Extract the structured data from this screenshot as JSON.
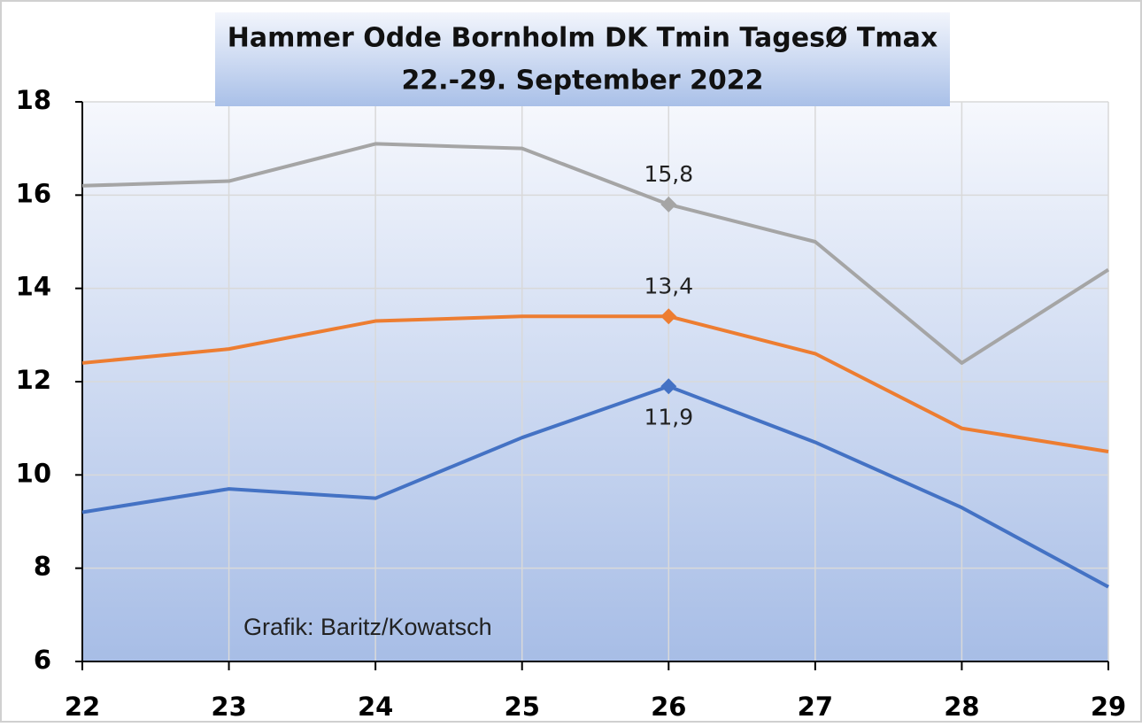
{
  "chart_data": {
    "type": "line",
    "title": "Hammer Odde Bornholm  DK Tmin TagesØ Tmax",
    "subtitle": "22.-29. September 2022",
    "annotation": "Grafik: Baritz/Kowatsch",
    "categories": [
      "22",
      "23",
      "24",
      "25",
      "26",
      "27",
      "28",
      "29"
    ],
    "series": [
      {
        "color": "#4472c4",
        "values": [
          9.2,
          9.7,
          9.5,
          10.8,
          11.9,
          10.7,
          9.3,
          7.6
        ],
        "value_labels": [
          null,
          null,
          null,
          null,
          "11,9",
          null,
          null,
          null
        ]
      },
      {
        "color": "#ed7d31",
        "values": [
          12.4,
          12.7,
          13.3,
          13.4,
          13.4,
          12.6,
          11.0,
          10.5
        ],
        "value_labels": [
          null,
          null,
          null,
          null,
          "13,4",
          null,
          null,
          null
        ]
      },
      {
        "color": "#a5a5a5",
        "values": [
          16.2,
          16.3,
          17.1,
          17.0,
          15.8,
          15.0,
          12.4,
          14.4
        ],
        "value_labels": [
          null,
          null,
          null,
          null,
          "15,8",
          null,
          null,
          null
        ]
      }
    ],
    "ylim": [
      6,
      18
    ],
    "yticks": [
      6,
      8,
      10,
      12,
      14,
      16,
      18
    ],
    "grid": true
  }
}
